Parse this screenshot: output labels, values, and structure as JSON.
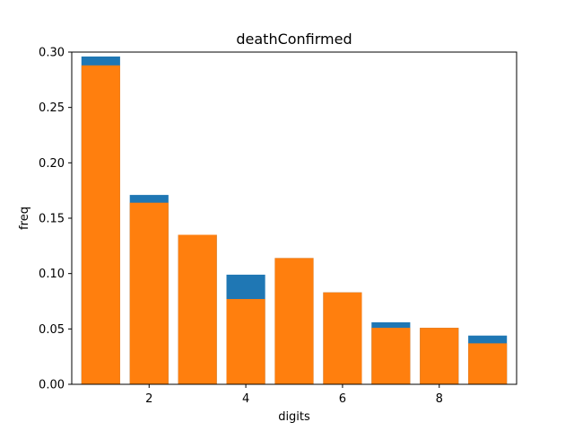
{
  "chart_data": {
    "type": "bar",
    "title": "deathConfirmed",
    "xlabel": "digits",
    "ylabel": "freq",
    "x": [
      1,
      2,
      3,
      4,
      5,
      6,
      7,
      8,
      9
    ],
    "xlim": [
      0.4,
      9.6
    ],
    "ylim": [
      0.0,
      0.3
    ],
    "xticks": [
      2,
      4,
      6,
      8
    ],
    "yticks": [
      0.0,
      0.05,
      0.1,
      0.15,
      0.2,
      0.25,
      0.3
    ],
    "ytick_labels": [
      "0.00",
      "0.05",
      "0.10",
      "0.15",
      "0.20",
      "0.25",
      "0.30"
    ],
    "grid": false,
    "series": [
      {
        "values": [
          0.296,
          0.171,
          0.135,
          0.099,
          0.114,
          0.083,
          0.056,
          0.051,
          0.044
        ],
        "color": "#1f77b4"
      },
      {
        "values": [
          0.288,
          0.164,
          0.135,
          0.077,
          0.114,
          0.083,
          0.051,
          0.051,
          0.037
        ],
        "color": "#ff7f0e"
      }
    ]
  }
}
